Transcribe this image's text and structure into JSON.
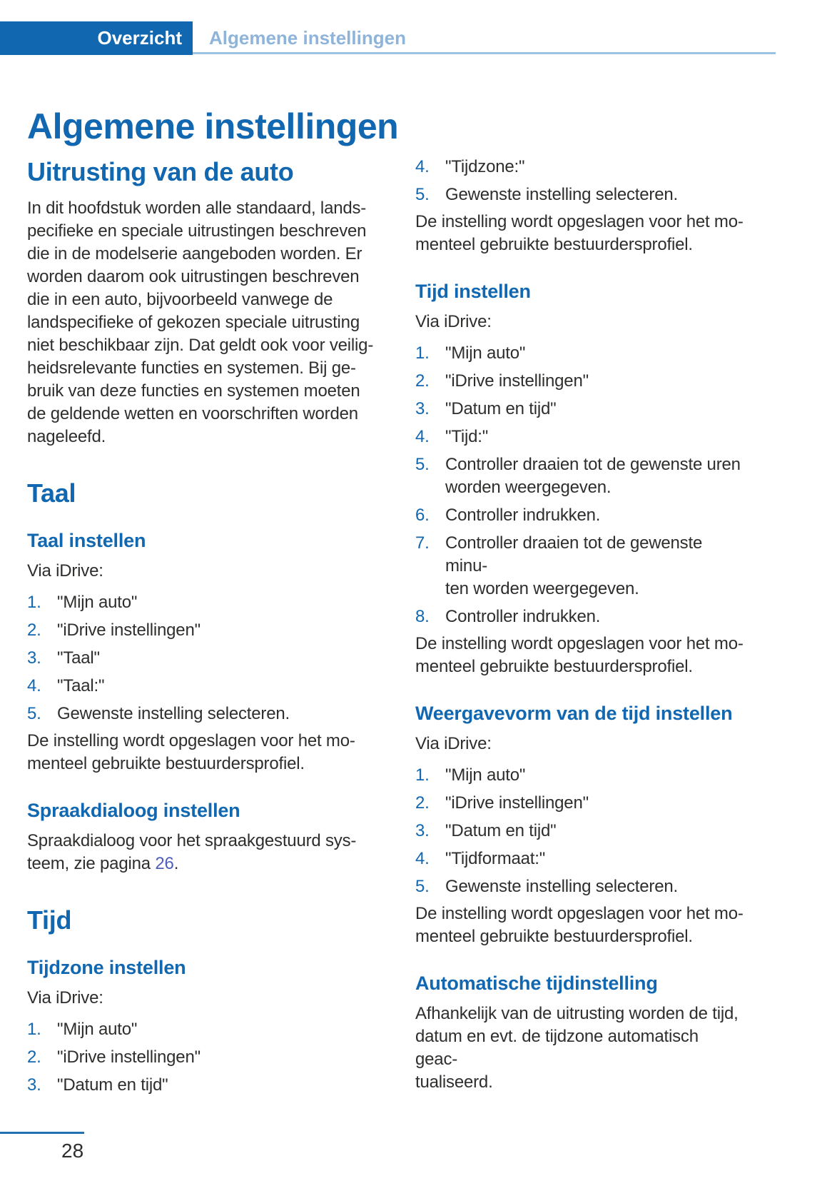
{
  "header": {
    "tab": "Overzicht",
    "breadcrumb": "Algemene instellingen"
  },
  "title": "Algemene instellingen",
  "left": {
    "equipment_heading": "Uitrusting van de auto",
    "equipment_text": "In dit hoofdstuk worden alle standaard, lands-\npecifieke en speciale uitrustingen beschreven\ndie in de modelserie aangeboden worden. Er\nworden daarom ook uitrustingen beschreven\ndie in een auto, bijvoorbeeld vanwege de\nlandspecifieke of gekozen speciale uitrusting\nniet beschikbaar zijn. Dat geldt ook voor veilig-\nheidsrelevante functies en systemen. Bij ge-\nbruik van deze functies en systemen moeten\nde geldende wetten en voorschriften worden\nnageleefd.",
    "taal_heading": "Taal",
    "taal_sub": "Taal instellen",
    "taal_via": "Via iDrive:",
    "taal_steps": [
      {
        "n": "1.",
        "t": "\"Mijn auto\""
      },
      {
        "n": "2.",
        "t": "\"iDrive instellingen\""
      },
      {
        "n": "3.",
        "t": "\"Taal\""
      },
      {
        "n": "4.",
        "t": "\"Taal:\""
      },
      {
        "n": "5.",
        "t": "Gewenste instelling selecteren."
      }
    ],
    "taal_note": "De instelling wordt opgeslagen voor het mo-\nmenteel gebruikte bestuurdersprofiel.",
    "spraak_sub": "Spraakdialoog instellen",
    "spraak_before": "Spraakdialoog voor het spraakgestuurd sys-\nteem, zie pagina ",
    "spraak_link": "26",
    "spraak_after": ".",
    "tijd_heading": "Tijd",
    "tijdzone_sub": "Tijdzone instellen",
    "tijdzone_via": "Via iDrive:",
    "tijdzone_steps": [
      {
        "n": "1.",
        "t": "\"Mijn auto\""
      },
      {
        "n": "2.",
        "t": "\"iDrive instellingen\""
      },
      {
        "n": "3.",
        "t": "\"Datum en tijd\""
      }
    ]
  },
  "right": {
    "tijdzone_steps_cont": [
      {
        "n": "4.",
        "t": "\"Tijdzone:\""
      },
      {
        "n": "5.",
        "t": "Gewenste instelling selecteren."
      }
    ],
    "tijdzone_note": "De instelling wordt opgeslagen voor het mo-\nmenteel gebruikte bestuurdersprofiel.",
    "tijd_sub": "Tijd instellen",
    "tijd_via": "Via iDrive:",
    "tijd_steps": [
      {
        "n": "1.",
        "t": "\"Mijn auto\""
      },
      {
        "n": "2.",
        "t": "\"iDrive instellingen\""
      },
      {
        "n": "3.",
        "t": "\"Datum en tijd\""
      },
      {
        "n": "4.",
        "t": "\"Tijd:\""
      },
      {
        "n": "5.",
        "t": "Controller draaien tot de gewenste uren\nworden weergegeven."
      },
      {
        "n": "6.",
        "t": "Controller indrukken."
      },
      {
        "n": "7.",
        "t": "Controller draaien tot de gewenste minu-\nten worden weergegeven."
      },
      {
        "n": "8.",
        "t": "Controller indrukken."
      }
    ],
    "tijd_note": "De instelling wordt opgeslagen voor het mo-\nmenteel gebruikte bestuurdersprofiel.",
    "weergave_sub": "Weergavevorm van de tijd instellen",
    "weergave_via": "Via iDrive:",
    "weergave_steps": [
      {
        "n": "1.",
        "t": "\"Mijn auto\""
      },
      {
        "n": "2.",
        "t": "\"iDrive instellingen\""
      },
      {
        "n": "3.",
        "t": "\"Datum en tijd\""
      },
      {
        "n": "4.",
        "t": "\"Tijdformaat:\""
      },
      {
        "n": "5.",
        "t": "Gewenste instelling selecteren."
      }
    ],
    "weergave_note": "De instelling wordt opgeslagen voor het mo-\nmenteel gebruikte bestuurdersprofiel.",
    "auto_sub": "Automatische tijdinstelling",
    "auto_text": "Afhankelijk van de uitrusting worden de tijd,\ndatum en evt. de tijdzone automatisch geac-\ntualiseerd."
  },
  "footer": {
    "page_number": "28"
  }
}
